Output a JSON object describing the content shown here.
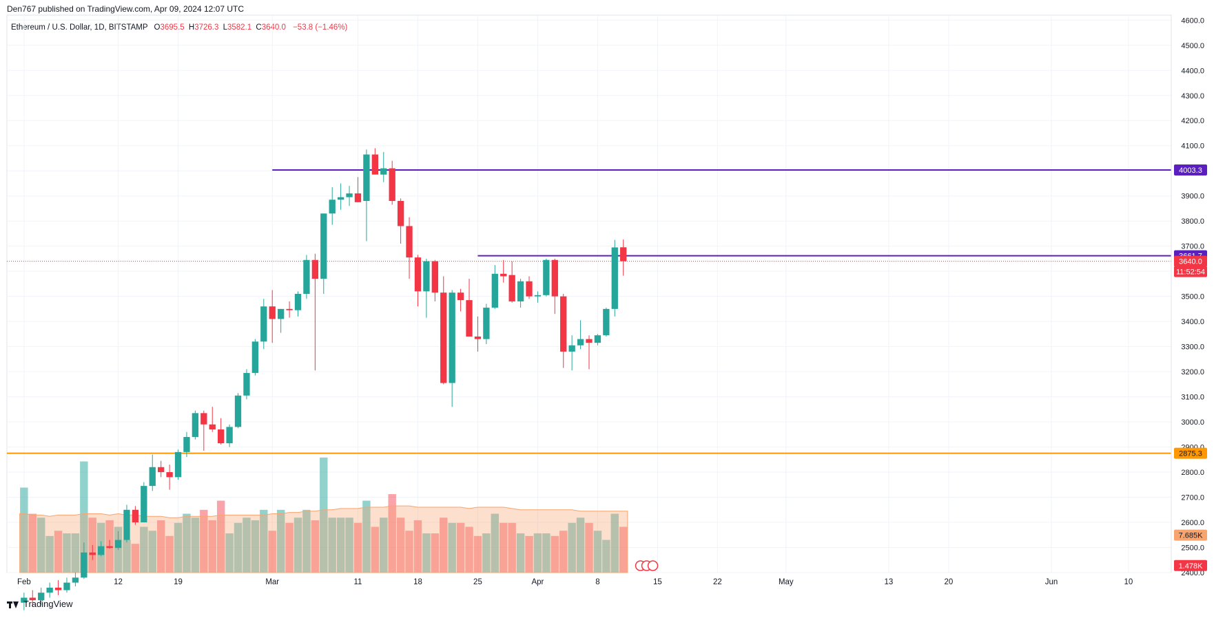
{
  "header": {
    "publisher_line": "Den767 published on TradingView.com, Apr 09, 2024 12:07 UTC"
  },
  "legend": {
    "symbol": "Ethereum / U.S. Dollar, 1D, BITSTAMP",
    "open_label": "O",
    "open": "3695.5",
    "high_label": "H",
    "high": "3726.3",
    "low_label": "L",
    "low": "3582.1",
    "close_label": "C",
    "close": "3640.0",
    "change": "−53.8 (−1.46%)"
  },
  "footer": {
    "brand": "TradingView"
  },
  "colors": {
    "up": "#26a69a",
    "down": "#f23645",
    "resistance": "#5c1fbf",
    "support": "#ff9800",
    "last_price": "#f23645",
    "volume_ma": "#f7a46f"
  },
  "chart_data": {
    "type": "candlestick",
    "y_ticks": [
      "2400.0",
      "2500.0",
      "2600.0",
      "2700.0",
      "2800.0",
      "2900.0",
      "3000.0",
      "3100.0",
      "3200.0",
      "3300.0",
      "3400.0",
      "3500.0",
      "3600.0",
      "3700.0",
      "3800.0",
      "3900.0",
      "4000.0",
      "4100.0",
      "4200.0",
      "4300.0",
      "4400.0",
      "4500.0",
      "4600.0"
    ],
    "ylim": [
      2400,
      4620
    ],
    "x_ticks": [
      {
        "day": 0,
        "label": "Feb"
      },
      {
        "day": 11,
        "label": "12"
      },
      {
        "day": 18,
        "label": "19"
      },
      {
        "day": 29,
        "label": "Mar"
      },
      {
        "day": 39,
        "label": "11"
      },
      {
        "day": 46,
        "label": "18"
      },
      {
        "day": 53,
        "label": "25"
      },
      {
        "day": 60,
        "label": "Apr"
      },
      {
        "day": 67,
        "label": "8"
      },
      {
        "day": 74,
        "label": "15"
      },
      {
        "day": 81,
        "label": "22"
      },
      {
        "day": 89,
        "label": "May"
      },
      {
        "day": 101,
        "label": "13"
      },
      {
        "day": 108,
        "label": "20"
      },
      {
        "day": 120,
        "label": "Jun"
      },
      {
        "day": 129,
        "label": "10"
      }
    ],
    "x_range_days": [
      -2,
      134
    ],
    "candles": [
      {
        "o": 2280,
        "h": 2320,
        "l": 2250,
        "c": 2300
      },
      {
        "o": 2300,
        "h": 2330,
        "l": 2265,
        "c": 2290
      },
      {
        "o": 2290,
        "h": 2340,
        "l": 2270,
        "c": 2320
      },
      {
        "o": 2320,
        "h": 2360,
        "l": 2300,
        "c": 2340
      },
      {
        "o": 2340,
        "h": 2370,
        "l": 2310,
        "c": 2330
      },
      {
        "o": 2330,
        "h": 2380,
        "l": 2320,
        "c": 2360
      },
      {
        "o": 2360,
        "h": 2400,
        "l": 2345,
        "c": 2380
      },
      {
        "o": 2380,
        "h": 2520,
        "l": 2375,
        "c": 2480
      },
      {
        "o": 2480,
        "h": 2510,
        "l": 2450,
        "c": 2470
      },
      {
        "o": 2470,
        "h": 2525,
        "l": 2465,
        "c": 2505
      },
      {
        "o": 2505,
        "h": 2530,
        "l": 2495,
        "c": 2498
      },
      {
        "o": 2498,
        "h": 2565,
        "l": 2490,
        "c": 2530
      },
      {
        "o": 2530,
        "h": 2670,
        "l": 2520,
        "c": 2650
      },
      {
        "o": 2650,
        "h": 2665,
        "l": 2590,
        "c": 2600
      },
      {
        "o": 2600,
        "h": 2760,
        "l": 2600,
        "c": 2745
      },
      {
        "o": 2745,
        "h": 2870,
        "l": 2725,
        "c": 2820
      },
      {
        "o": 2820,
        "h": 2845,
        "l": 2780,
        "c": 2800
      },
      {
        "o": 2800,
        "h": 2830,
        "l": 2730,
        "c": 2780
      },
      {
        "o": 2780,
        "h": 2890,
        "l": 2770,
        "c": 2880
      },
      {
        "o": 2880,
        "h": 2960,
        "l": 2860,
        "c": 2940
      },
      {
        "o": 2940,
        "h": 3045,
        "l": 2930,
        "c": 3035
      },
      {
        "o": 3035,
        "h": 3045,
        "l": 2885,
        "c": 2990
      },
      {
        "o": 2990,
        "h": 3060,
        "l": 2960,
        "c": 2970
      },
      {
        "o": 2970,
        "h": 3015,
        "l": 2910,
        "c": 2915
      },
      {
        "o": 2915,
        "h": 2990,
        "l": 2900,
        "c": 2980
      },
      {
        "o": 2980,
        "h": 3115,
        "l": 2975,
        "c": 3105
      },
      {
        "o": 3105,
        "h": 3210,
        "l": 3090,
        "c": 3195
      },
      {
        "o": 3195,
        "h": 3330,
        "l": 3185,
        "c": 3320
      },
      {
        "o": 3320,
        "h": 3490,
        "l": 3290,
        "c": 3460
      },
      {
        "o": 3460,
        "h": 3525,
        "l": 3315,
        "c": 3410
      },
      {
        "o": 3410,
        "h": 3450,
        "l": 3355,
        "c": 3450
      },
      {
        "o": 3450,
        "h": 3480,
        "l": 3415,
        "c": 3445
      },
      {
        "o": 3445,
        "h": 3520,
        "l": 3420,
        "c": 3510
      },
      {
        "o": 3510,
        "h": 3665,
        "l": 3490,
        "c": 3645
      },
      {
        "o": 3645,
        "h": 3670,
        "l": 3205,
        "c": 3570
      },
      {
        "o": 3570,
        "h": 3830,
        "l": 3510,
        "c": 3830
      },
      {
        "o": 3830,
        "h": 3935,
        "l": 3785,
        "c": 3885
      },
      {
        "o": 3885,
        "h": 3950,
        "l": 3845,
        "c": 3895
      },
      {
        "o": 3895,
        "h": 3940,
        "l": 3860,
        "c": 3910
      },
      {
        "o": 3910,
        "h": 3975,
        "l": 3875,
        "c": 3875
      },
      {
        "o": 3880,
        "h": 4085,
        "l": 3720,
        "c": 4065
      },
      {
        "o": 4065,
        "h": 4090,
        "l": 3985,
        "c": 3985
      },
      {
        "o": 3985,
        "h": 4075,
        "l": 3955,
        "c": 4010
      },
      {
        "o": 4010,
        "h": 4040,
        "l": 3865,
        "c": 3880
      },
      {
        "o": 3880,
        "h": 3890,
        "l": 3710,
        "c": 3780
      },
      {
        "o": 3780,
        "h": 3815,
        "l": 3570,
        "c": 3655
      },
      {
        "o": 3655,
        "h": 3665,
        "l": 3460,
        "c": 3520
      },
      {
        "o": 3520,
        "h": 3650,
        "l": 3415,
        "c": 3640
      },
      {
        "o": 3640,
        "h": 3645,
        "l": 3480,
        "c": 3515
      },
      {
        "o": 3515,
        "h": 3580,
        "l": 3150,
        "c": 3155
      },
      {
        "o": 3155,
        "h": 3525,
        "l": 3060,
        "c": 3515
      },
      {
        "o": 3515,
        "h": 3530,
        "l": 3440,
        "c": 3485
      },
      {
        "o": 3485,
        "h": 3570,
        "l": 3340,
        "c": 3340
      },
      {
        "o": 3340,
        "h": 3420,
        "l": 3280,
        "c": 3330
      },
      {
        "o": 3330,
        "h": 3470,
        "l": 3310,
        "c": 3455
      },
      {
        "o": 3455,
        "h": 3625,
        "l": 3450,
        "c": 3590
      },
      {
        "o": 3590,
        "h": 3645,
        "l": 3555,
        "c": 3580
      },
      {
        "o": 3585,
        "h": 3640,
        "l": 3475,
        "c": 3480
      },
      {
        "o": 3480,
        "h": 3570,
        "l": 3455,
        "c": 3560
      },
      {
        "o": 3560,
        "h": 3580,
        "l": 3490,
        "c": 3500
      },
      {
        "o": 3500,
        "h": 3520,
        "l": 3475,
        "c": 3505
      },
      {
        "o": 3505,
        "h": 3650,
        "l": 3500,
        "c": 3645
      },
      {
        "o": 3645,
        "h": 3650,
        "l": 3430,
        "c": 3500
      },
      {
        "o": 3500,
        "h": 3510,
        "l": 3215,
        "c": 3280
      },
      {
        "o": 3280,
        "h": 3345,
        "l": 3205,
        "c": 3305
      },
      {
        "o": 3305,
        "h": 3405,
        "l": 3290,
        "c": 3330
      },
      {
        "o": 3330,
        "h": 3345,
        "l": 3210,
        "c": 3315
      },
      {
        "o": 3315,
        "h": 3350,
        "l": 3305,
        "c": 3345
      },
      {
        "o": 3345,
        "h": 3455,
        "l": 3340,
        "c": 3450
      },
      {
        "o": 3450,
        "h": 3725,
        "l": 3420,
        "c": 3695
      },
      {
        "o": 3695.5,
        "h": 3726.3,
        "l": 3582.1,
        "c": 3640.0
      }
    ],
    "volume": [
      0.65,
      0.45,
      0.42,
      0.28,
      0.32,
      0.3,
      0.3,
      0.85,
      0.42,
      0.38,
      0.4,
      0.35,
      0.25,
      0.22,
      0.35,
      0.32,
      0.4,
      0.28,
      0.38,
      0.45,
      0.42,
      0.48,
      0.4,
      0.55,
      0.3,
      0.38,
      0.42,
      0.4,
      0.48,
      0.32,
      0.48,
      0.38,
      0.42,
      0.48,
      0.4,
      0.88,
      0.42,
      0.42,
      0.42,
      0.38,
      0.55,
      0.35,
      0.42,
      0.6,
      0.42,
      0.32,
      0.4,
      0.3,
      0.3,
      0.42,
      0.38,
      0.38,
      0.35,
      0.28,
      0.3,
      0.45,
      0.38,
      0.38,
      0.3,
      0.28,
      0.3,
      0.3,
      0.28,
      0.32,
      0.38,
      0.42,
      0.38,
      0.32,
      0.25,
      0.45,
      0.35
    ],
    "volume_ma": [
      0.45,
      0.44,
      0.44,
      0.43,
      0.44,
      0.44,
      0.44,
      0.45,
      0.45,
      0.45,
      0.44,
      0.45,
      0.44,
      0.44,
      0.43,
      0.43,
      0.43,
      0.42,
      0.42,
      0.43,
      0.43,
      0.43,
      0.43,
      0.44,
      0.44,
      0.44,
      0.44,
      0.44,
      0.44,
      0.45,
      0.45,
      0.46,
      0.46,
      0.47,
      0.47,
      0.48,
      0.48,
      0.49,
      0.49,
      0.49,
      0.5,
      0.5,
      0.5,
      0.51,
      0.51,
      0.51,
      0.5,
      0.5,
      0.5,
      0.5,
      0.5,
      0.5,
      0.49,
      0.5,
      0.5,
      0.5,
      0.5,
      0.49,
      0.48,
      0.48,
      0.48,
      0.48,
      0.48,
      0.48,
      0.48,
      0.47,
      0.47,
      0.47,
      0.47,
      0.47,
      0.47
    ],
    "lines": [
      {
        "name": "resistance-4003",
        "price": 4003.3,
        "start_day": 29,
        "label": "4003.3",
        "color": "#5c1fbf"
      },
      {
        "name": "resistance-3661",
        "price": 3661.7,
        "start_day": 53,
        "label": "3661.7",
        "color": "#5c1fbf"
      },
      {
        "name": "support-2875",
        "price": 2875.3,
        "start_day": -2,
        "label": "2875.3",
        "color": "#ff9800"
      }
    ],
    "last_price": {
      "price": 3640.0,
      "label": "3640.0",
      "countdown": "11:52:54"
    },
    "volume_labels": [
      {
        "label": "7.685K",
        "color": "#f7a46f"
      },
      {
        "label": "1.478K",
        "color": "#f23645"
      }
    ]
  }
}
